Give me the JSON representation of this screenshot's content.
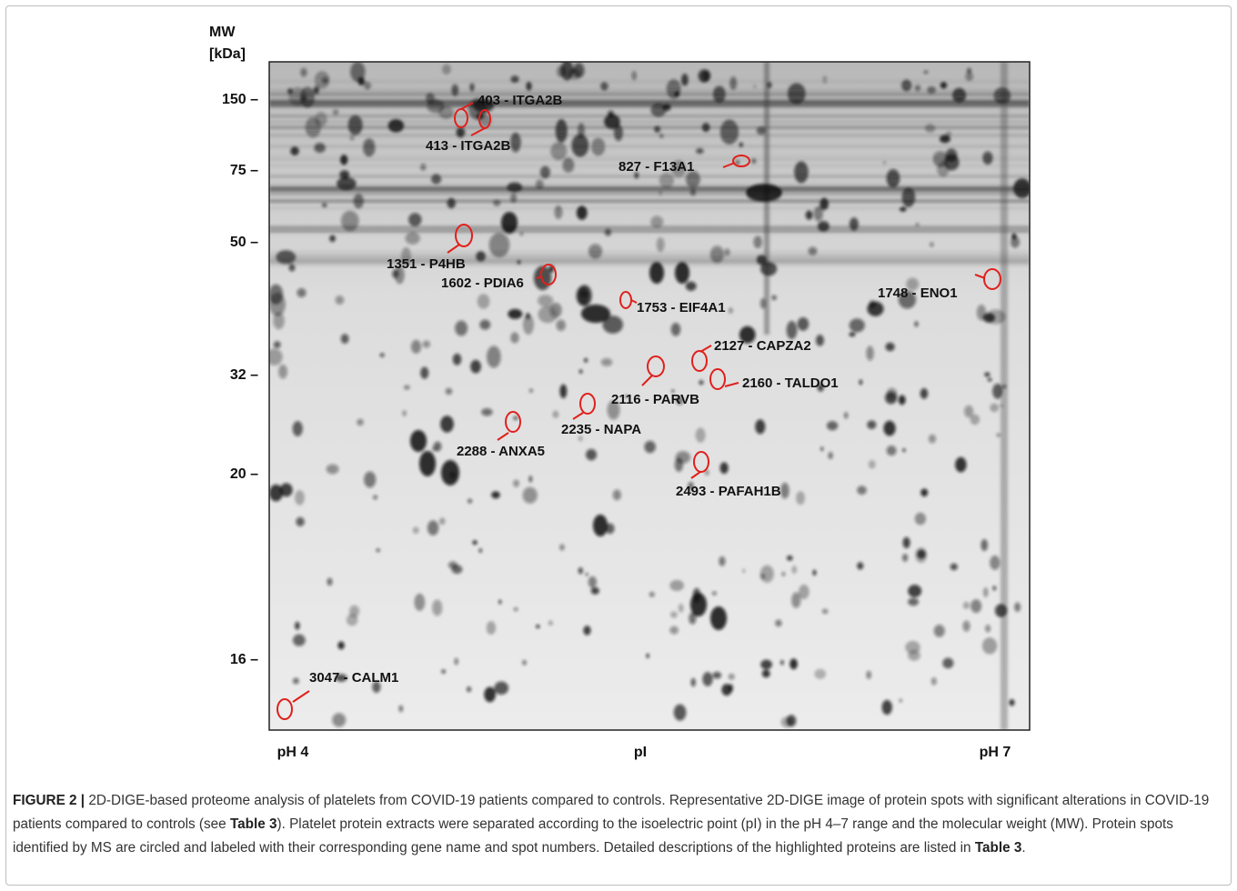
{
  "figure": {
    "y_axis": {
      "title_line1": "MW",
      "title_line2": "[kDa]",
      "ticks": [
        "150 –",
        "75 –",
        "50 –",
        "32 –",
        "20 –",
        "16 –"
      ]
    },
    "x_axis": {
      "left": "pH 4",
      "center": "pI",
      "right": "pH 7"
    },
    "spots": [
      "403 - ITGA2B",
      "413 - ITGA2B",
      "827 - F13A1",
      "1351 - P4HB",
      "1602 - PDIA6",
      "1753 - EIF4A1",
      "1748 - ENO1",
      "2127 - CAPZA2",
      "2116 - PARVB",
      "2160 - TALDO1",
      "2235 - NAPA",
      "2288 - ANXA5",
      "2493 - PAFAH1B",
      "3047 - CALM1"
    ]
  },
  "caption": {
    "label": "FIGURE 2 |",
    "parts": [
      " 2D-DIGE-based proteome analysis of platelets from COVID-19 patients compared to controls. Representative 2D-DIGE image of protein spots with significant alterations in COVID-19 patients compared to controls (see ",
      "Table 3",
      "). Platelet protein extracts were separated according to the isoelectric point (pI) in the pH 4–7 range and the molecular weight (MW). Protein spots identified by MS are circled and labeled with their corresponding gene name and spot numbers. Detailed descriptions of the highlighted proteins are listed in ",
      "Table 3",
      "."
    ]
  }
}
